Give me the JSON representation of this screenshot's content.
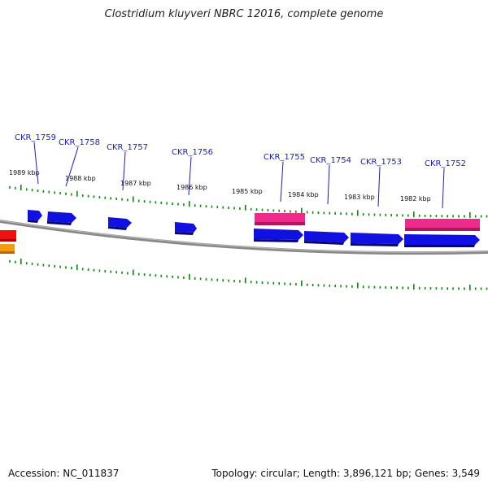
{
  "title": "Clostridium kluyveri NBRC 12016, complete genome",
  "footer": {
    "accession": "Accession: NC_011837",
    "topology": "Topology: circular; Length: 3,896,121 bp; Genes: 3,549"
  },
  "colors": {
    "forward_gene": "#1010e0",
    "rna_gene": "#ee2a8a",
    "backbone": "#777777",
    "ticks": "#0a8a0a",
    "label": "#1a1acc"
  },
  "kbp_labels": [
    "1989 kbp",
    "1988 kbp",
    "1987 kbp",
    "1986 kbp",
    "1985 kbp",
    "1984 kbp",
    "1983 kbp",
    "1982 kbp"
  ],
  "genes": [
    "CKR_1759",
    "CKR_1758",
    "CKR_1757",
    "CKR_1756",
    "CKR_1755",
    "CKR_1754",
    "CKR_1753",
    "CKR_1752"
  ]
}
